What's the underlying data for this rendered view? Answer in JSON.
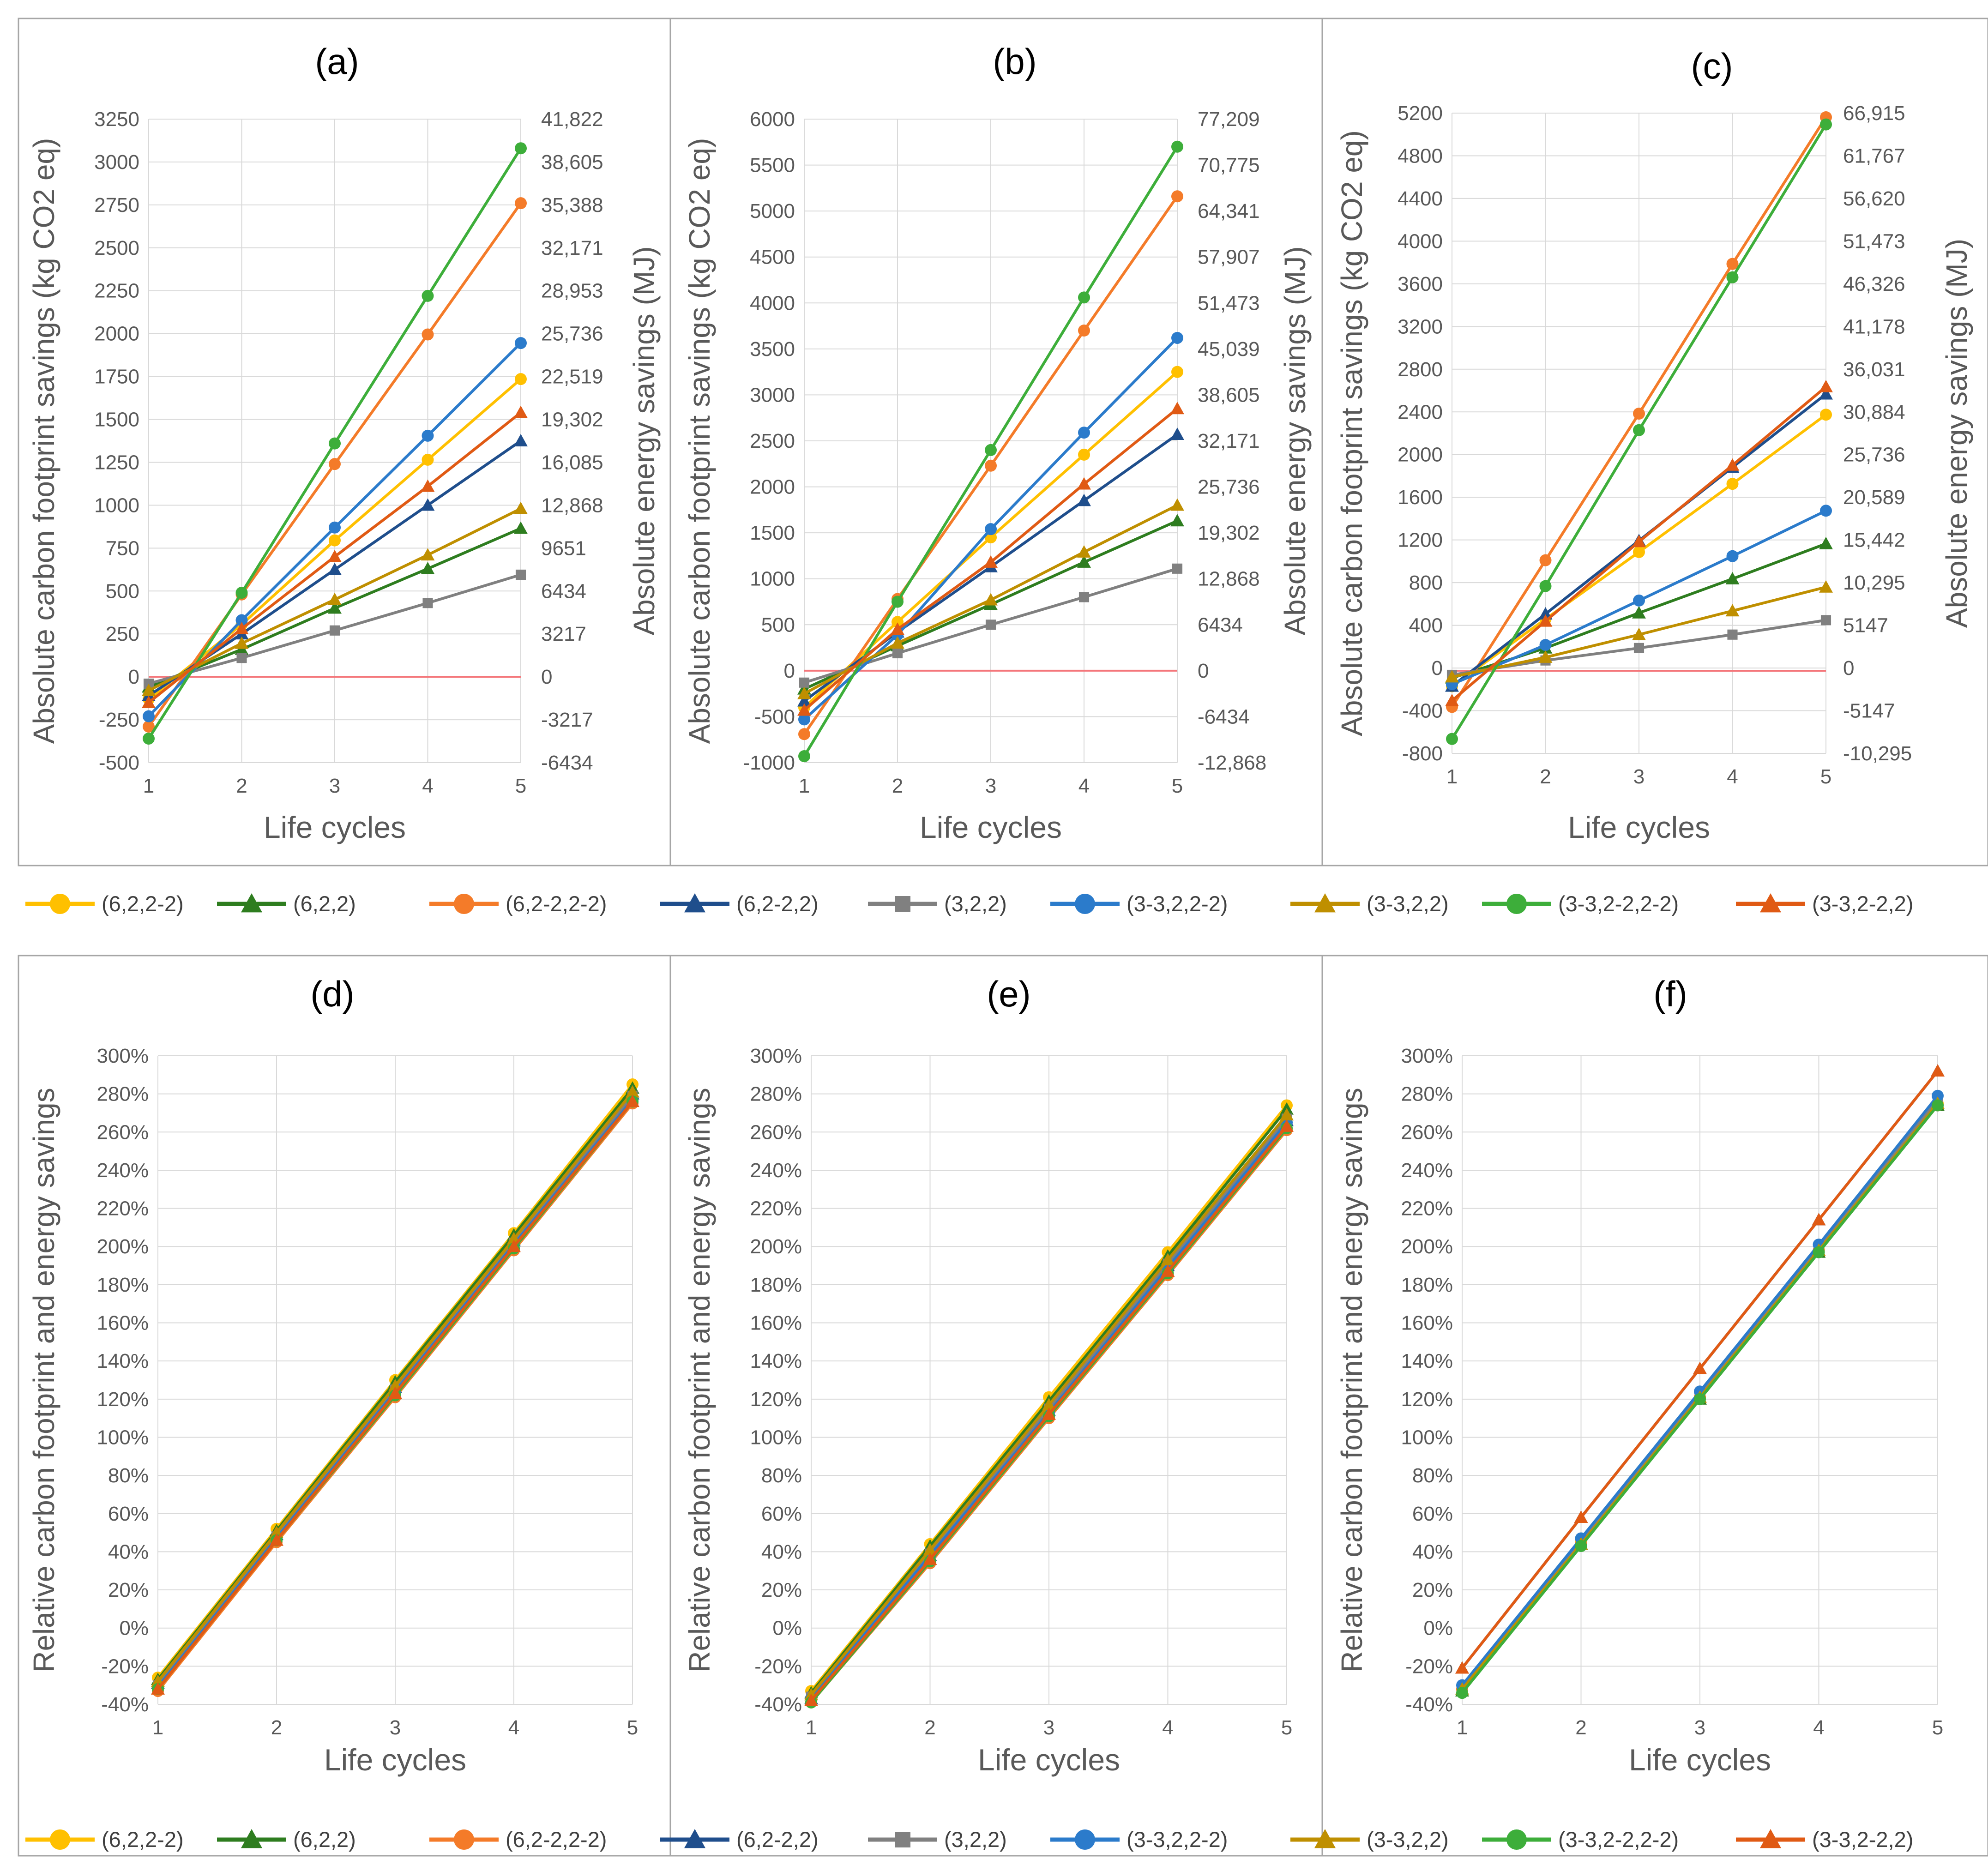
{
  "legend_series": [
    {
      "name": "(6,2,2-2)",
      "color": "#FFC000",
      "marker": "circle"
    },
    {
      "name": "(6,2,2)",
      "color": "#2E7D1F",
      "marker": "triangle"
    },
    {
      "name": "(6,2-2,2-2)",
      "color": "#F47B29",
      "marker": "circle"
    },
    {
      "name": "(6,2-2,2)",
      "color": "#1F4E8C",
      "marker": "triangle"
    },
    {
      "name": "(3,2,2)",
      "color": "#808080",
      "marker": "square"
    },
    {
      "name": "(3-3,2,2-2)",
      "color": "#2B7BCB",
      "marker": "circle"
    },
    {
      "name": "(3-3,2,2)",
      "color": "#BF8F00",
      "marker": "triangle"
    },
    {
      "name": "(3-3,2-2,2-2)",
      "color": "#3DAE3A",
      "marker": "circle"
    },
    {
      "name": "(3-3,2-2,2)",
      "color": "#E05A14",
      "marker": "triangle"
    }
  ],
  "chart_data": [
    {
      "panel": "(a)",
      "type": "line",
      "title": "(a)",
      "xlabel": "Life cycles",
      "ylabel": "Absolute carbon footprint savings (kg CO2 eq)",
      "y2label": "Absolute energy savings (MJ)",
      "x": [
        1,
        2,
        3,
        4,
        5
      ],
      "ylim": [
        -500,
        3250
      ],
      "yticks": [
        "-500",
        "-250",
        "0",
        "250",
        "500",
        "750",
        "1000",
        "1250",
        "1500",
        "1750",
        "2000",
        "2250",
        "2500",
        "2750",
        "3000",
        "3250"
      ],
      "y2ticks": [
        "-6434",
        "-3217",
        "0",
        "3217",
        "6434",
        "9651",
        "12,868",
        "16,085",
        "19,302",
        "22,519",
        "25,736",
        "28,953",
        "32,171",
        "35,388",
        "38,605",
        "41,822"
      ],
      "reference_line": 0,
      "series": [
        {
          "name": "(6,2,2-2)",
          "values": [
            -130,
            305,
            795,
            1265,
            1735
          ]
        },
        {
          "name": "(6,2,2)",
          "values": [
            -60,
            160,
            400,
            630,
            865
          ]
        },
        {
          "name": "(6,2-2,2-2)",
          "values": [
            -290,
            480,
            1240,
            1995,
            2760
          ]
        },
        {
          "name": "(6,2-2,2)",
          "values": [
            -110,
            250,
            625,
            1000,
            1375
          ]
        },
        {
          "name": "(3,2,2)",
          "values": [
            -40,
            110,
            270,
            430,
            595
          ]
        },
        {
          "name": "(3-3,2,2-2)",
          "values": [
            -230,
            330,
            870,
            1405,
            1945
          ]
        },
        {
          "name": "(3-3,2,2)",
          "values": [
            -80,
            195,
            450,
            710,
            980
          ]
        },
        {
          "name": "(3-3,2-2,2-2)",
          "values": [
            -360,
            490,
            1360,
            2220,
            3080
          ]
        },
        {
          "name": "(3-3,2-2,2)",
          "values": [
            -150,
            280,
            700,
            1110,
            1540
          ]
        }
      ]
    },
    {
      "panel": "(b)",
      "type": "line",
      "title": "(b)",
      "xlabel": "Life cycles",
      "ylabel": "Absolute carbon footprint savings (kg CO2 eq)",
      "y2label": "Absolute energy savings (MJ)",
      "x": [
        1,
        2,
        3,
        4,
        5
      ],
      "ylim": [
        -1000,
        6000
      ],
      "yticks": [
        "-1000",
        "-500",
        "0",
        "500",
        "1000",
        "1500",
        "2000",
        "2500",
        "3000",
        "3500",
        "4000",
        "4500",
        "5000",
        "5500",
        "6000"
      ],
      "y2ticks": [
        "-12,868",
        "-6434",
        "0",
        "6434",
        "12,868",
        "19,302",
        "25,736",
        "32,171",
        "38,605",
        "45,039",
        "51,473",
        "57,907",
        "64,341",
        "70,775",
        "77,209"
      ],
      "reference_line": 0,
      "series": [
        {
          "name": "(6,2,2-2)",
          "values": [
            -400,
            530,
            1450,
            2350,
            3250
          ]
        },
        {
          "name": "(6,2,2)",
          "values": [
            -200,
            270,
            720,
            1180,
            1630
          ]
        },
        {
          "name": "(6,2-2,2-2)",
          "values": [
            -690,
            780,
            2230,
            3700,
            5160
          ]
        },
        {
          "name": "(6,2-2,2)",
          "values": [
            -330,
            420,
            1130,
            1850,
            2570
          ]
        },
        {
          "name": "(3,2,2)",
          "values": [
            -130,
            190,
            500,
            800,
            1110
          ]
        },
        {
          "name": "(3-3,2,2-2)",
          "values": [
            -530,
            390,
            1540,
            2590,
            3620
          ]
        },
        {
          "name": "(3-3,2,2)",
          "values": [
            -250,
            300,
            770,
            1290,
            1800
          ]
        },
        {
          "name": "(3-3,2-2,2-2)",
          "values": [
            -930,
            750,
            2400,
            4060,
            5700
          ]
        },
        {
          "name": "(3-3,2-2,2)",
          "values": [
            -430,
            450,
            1180,
            2030,
            2850
          ]
        }
      ]
    },
    {
      "panel": "(c)",
      "type": "line",
      "title": "(c)",
      "xlabel": "Life cycles",
      "ylabel": "Absolute carbon footprint savings (kg CO2 eq)",
      "y2label": "Absolute energy savings (MJ)",
      "x": [
        1,
        2,
        3,
        4,
        5
      ],
      "ylim": [
        -800,
        5400
      ],
      "yticks": [
        "-800",
        "-400",
        "0",
        "400",
        "800",
        "1200",
        "1600",
        "2000",
        "2400",
        "2800",
        "3200",
        "3600",
        "4000",
        "4400",
        "4800",
        "5200"
      ],
      "y2ticks": [
        "-10,295",
        "-5147",
        "0",
        "5147",
        "10,295",
        "15,442",
        "20,589",
        "25,736",
        "30,884",
        "36,031",
        "41,178",
        "46,326",
        "51,473",
        "56,620",
        "61,767",
        "66,915"
      ],
      "reference_line": 0,
      "series": [
        {
          "name": "(6,2,2-2)",
          "values": [
            -150,
            500,
            1150,
            1810,
            2480
          ]
        },
        {
          "name": "(6,2,2)",
          "values": [
            -70,
            220,
            560,
            890,
            1230
          ]
        },
        {
          "name": "(6,2-2,2-2)",
          "values": [
            -350,
            1070,
            2490,
            3940,
            5360
          ]
        },
        {
          "name": "(6,2-2,2)",
          "values": [
            -150,
            550,
            1260,
            1970,
            2680
          ]
        },
        {
          "name": "(3,2,2)",
          "values": [
            -40,
            100,
            220,
            350,
            490
          ]
        },
        {
          "name": "(3-3,2,2-2)",
          "values": [
            -130,
            250,
            680,
            1110,
            1550
          ]
        },
        {
          "name": "(3-3,2,2)",
          "values": [
            -60,
            130,
            350,
            580,
            810
          ]
        },
        {
          "name": "(3-3,2-2,2-2)",
          "values": [
            -660,
            820,
            2330,
            3810,
            5290
          ]
        },
        {
          "name": "(3-3,2-2,2)",
          "values": [
            -290,
            480,
            1250,
            1990,
            2750
          ]
        }
      ]
    },
    {
      "panel": "(d)",
      "type": "line",
      "title": "(d)",
      "xlabel": "Life cycles",
      "ylabel": "Relative carbon footprint and energy savings",
      "x": [
        1,
        2,
        3,
        4,
        5
      ],
      "ylim": [
        -40,
        300
      ],
      "yticks": [
        "-40%",
        "-20%",
        "0%",
        "20%",
        "40%",
        "60%",
        "80%",
        "100%",
        "120%",
        "140%",
        "160%",
        "180%",
        "200%",
        "220%",
        "240%",
        "260%",
        "280%",
        "300%"
      ],
      "series": [
        {
          "name": "(6,2,2-2)",
          "values": [
            -26,
            52,
            130,
            207,
            285
          ]
        },
        {
          "name": "(6,2,2)",
          "values": [
            -27,
            51,
            129,
            206,
            283
          ]
        },
        {
          "name": "(6,2-2,2-2)",
          "values": [
            -33,
            45,
            121,
            198,
            275
          ]
        },
        {
          "name": "(6,2-2,2)",
          "values": [
            -29,
            49,
            126,
            203,
            280
          ]
        },
        {
          "name": "(3,2,2)",
          "values": [
            -30,
            48,
            125,
            202,
            279
          ]
        },
        {
          "name": "(3-3,2,2-2)",
          "values": [
            -31,
            47,
            124,
            201,
            277
          ]
        },
        {
          "name": "(3-3,2,2)",
          "values": [
            -28,
            50,
            127,
            204,
            281
          ]
        },
        {
          "name": "(3-3,2-2,2-2)",
          "values": [
            -32,
            46,
            122,
            199,
            276
          ]
        },
        {
          "name": "(3-3,2-2,2)",
          "values": [
            -32,
            46,
            123,
            200,
            276
          ]
        }
      ]
    },
    {
      "panel": "(e)",
      "type": "line",
      "title": "(e)",
      "xlabel": "Life cycles",
      "ylabel": "Relative carbon footprint and energy savings",
      "x": [
        1,
        2,
        3,
        4,
        5
      ],
      "ylim": [
        -40,
        300
      ],
      "yticks": [
        "-40%",
        "-20%",
        "0%",
        "20%",
        "40%",
        "60%",
        "80%",
        "100%",
        "120%",
        "140%",
        "160%",
        "180%",
        "200%",
        "220%",
        "240%",
        "260%",
        "280%",
        "300%"
      ],
      "series": [
        {
          "name": "(6,2,2-2)",
          "values": [
            -33,
            44,
            121,
            197,
            274
          ]
        },
        {
          "name": "(6,2,2)",
          "values": [
            -34,
            43,
            119,
            195,
            272
          ]
        },
        {
          "name": "(6,2-2,2-2)",
          "values": [
            -39,
            34,
            110,
            185,
            261
          ]
        },
        {
          "name": "(6,2-2,2)",
          "values": [
            -37,
            38,
            114,
            190,
            266
          ]
        },
        {
          "name": "(3,2,2)",
          "values": [
            -36,
            39,
            115,
            191,
            267
          ]
        },
        {
          "name": "(3-3,2,2-2)",
          "values": [
            -37,
            38,
            113,
            189,
            265
          ]
        },
        {
          "name": "(3-3,2,2)",
          "values": [
            -35,
            41,
            117,
            193,
            269
          ]
        },
        {
          "name": "(3-3,2-2,2-2)",
          "values": [
            -39,
            35,
            111,
            186,
            262
          ]
        },
        {
          "name": "(3-3,2-2,2)",
          "values": [
            -38,
            36,
            112,
            187,
            263
          ]
        }
      ]
    },
    {
      "panel": "(f)",
      "type": "line",
      "title": "(f)",
      "xlabel": "Life cycles",
      "ylabel": "Relative carbon footprint and energy savings",
      "x": [
        1,
        2,
        3,
        4,
        5
      ],
      "ylim": [
        -40,
        300
      ],
      "yticks": [
        "-40%",
        "-20%",
        "0%",
        "20%",
        "40%",
        "60%",
        "80%",
        "100%",
        "120%",
        "140%",
        "160%",
        "180%",
        "200%",
        "220%",
        "240%",
        "260%",
        "280%",
        "300%"
      ],
      "series": [
        {
          "name": "(6,2,2-2)",
          "values": [
            -32,
            45,
            121,
            198,
            275
          ]
        },
        {
          "name": "(6,2,2)",
          "values": [
            -33,
            44,
            120,
            197,
            274
          ]
        },
        {
          "name": "(6,2-2,2-2)",
          "values": [
            -32,
            44,
            121,
            198,
            274
          ]
        },
        {
          "name": "(6,2-2,2)",
          "values": [
            -21,
            58,
            136,
            214,
            292
          ]
        },
        {
          "name": "(3,2,2)",
          "values": [
            -31,
            46,
            123,
            200,
            277
          ]
        },
        {
          "name": "(3-3,2,2-2)",
          "values": [
            -30,
            47,
            124,
            201,
            279
          ]
        },
        {
          "name": "(3-3,2,2)",
          "values": [
            -32,
            44,
            121,
            198,
            275
          ]
        },
        {
          "name": "(3-3,2-2,2-2)",
          "values": [
            -34,
            43,
            120,
            197,
            274
          ]
        },
        {
          "name": "(3-3,2-2,2)",
          "values": [
            -21,
            58,
            136,
            214,
            292
          ]
        }
      ]
    }
  ]
}
